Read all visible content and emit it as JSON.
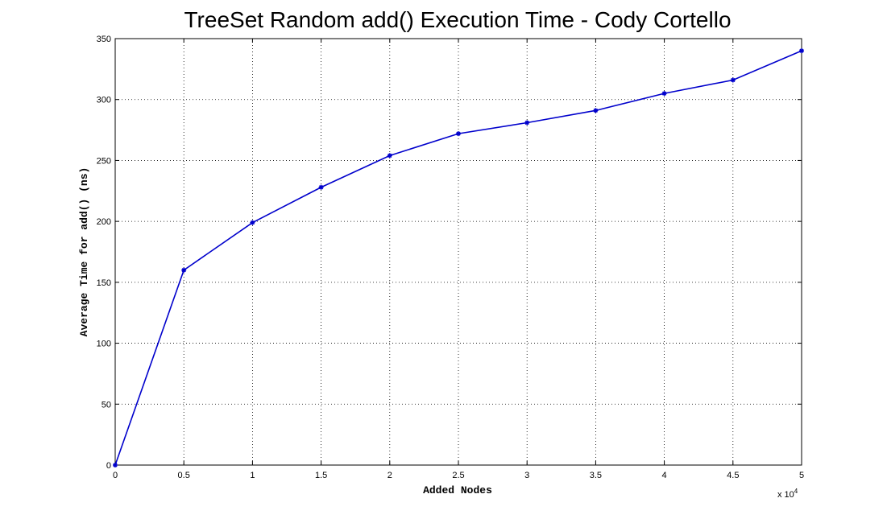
{
  "chart_data": {
    "type": "line",
    "title": "TreeSet Random add() Execution Time - Cody Cortello",
    "xlabel": "Added Nodes",
    "ylabel": "Average Time for add() (ns)",
    "x_multiplier_label": "x 10",
    "x_multiplier_exponent": "4",
    "xlim": [
      0,
      5
    ],
    "ylim": [
      0,
      350
    ],
    "xticks": [
      0,
      0.5,
      1,
      1.5,
      2,
      2.5,
      3,
      3.5,
      4,
      4.5,
      5
    ],
    "xtick_labels": [
      "0",
      "0.5",
      "1",
      "1.5",
      "2",
      "2.5",
      "3",
      "3.5",
      "4",
      "4.5",
      "5"
    ],
    "yticks": [
      0,
      50,
      100,
      150,
      200,
      250,
      300,
      350
    ],
    "ytick_labels": [
      "0",
      "50",
      "100",
      "150",
      "200",
      "250",
      "300",
      "350"
    ],
    "grid": true,
    "series": [
      {
        "color": "#0000cc",
        "marker": "asterisk",
        "x": [
          0,
          0.5,
          1,
          1.5,
          2,
          2.5,
          3,
          3.5,
          4,
          4.5,
          5
        ],
        "y": [
          0,
          160,
          199,
          228,
          254,
          272,
          281,
          291,
          305,
          316,
          340
        ]
      }
    ]
  }
}
